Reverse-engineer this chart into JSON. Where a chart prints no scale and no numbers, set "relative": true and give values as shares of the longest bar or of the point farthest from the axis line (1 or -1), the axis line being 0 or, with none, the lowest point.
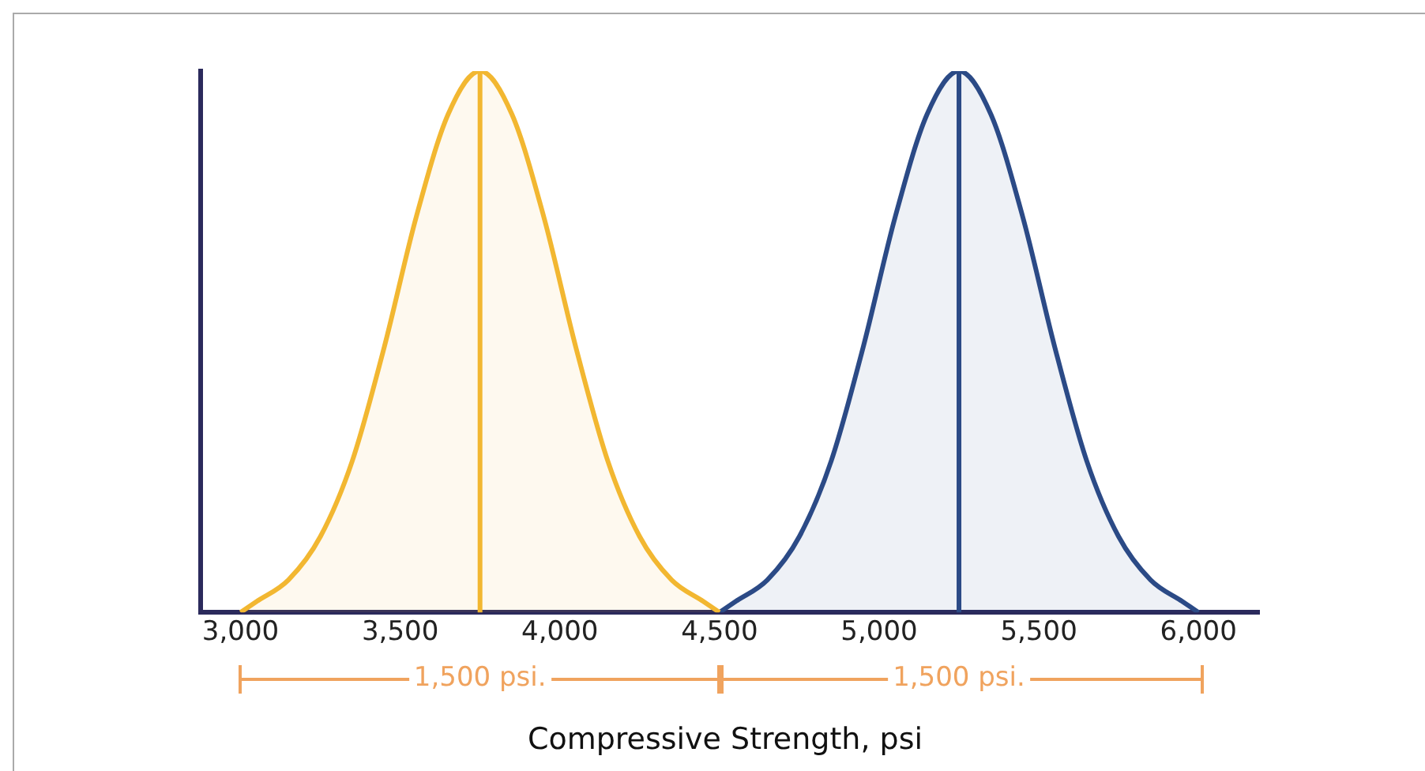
{
  "chart_data": {
    "type": "area",
    "relative": true,
    "xlabel": "Compressive Strength, psi",
    "series": [
      {
        "color": "#f2b731",
        "x": [
          3000,
          3050,
          3150,
          3250,
          3350,
          3450,
          3550,
          3650,
          3750,
          3850,
          3950,
          4050,
          4150,
          4250,
          4350,
          4450,
          4500
        ],
        "values": [
          0,
          0.02,
          0.06,
          0.14,
          0.28,
          0.49,
          0.73,
          0.92,
          1,
          0.92,
          0.73,
          0.49,
          0.28,
          0.14,
          0.06,
          0.02,
          0
        ]
      },
      {
        "color": "#2b4a86",
        "x": [
          4500,
          4550,
          4650,
          4750,
          4850,
          4950,
          5050,
          5150,
          5250,
          5350,
          5450,
          5550,
          5650,
          5750,
          5850,
          5950,
          6000
        ],
        "values": [
          0,
          0.02,
          0.06,
          0.14,
          0.28,
          0.49,
          0.73,
          0.92,
          1,
          0.92,
          0.73,
          0.49,
          0.28,
          0.14,
          0.06,
          0.02,
          0
        ]
      }
    ],
    "xlim": [
      2875,
      6190
    ],
    "xticks": [
      {
        "value": 3000,
        "label": "3,000"
      },
      {
        "value": 3500,
        "label": "3,500"
      },
      {
        "value": 4000,
        "label": "4,000"
      },
      {
        "value": 4500,
        "label": "4,500"
      },
      {
        "value": 5000,
        "label": "5,000"
      },
      {
        "value": 5500,
        "label": "5,500"
      },
      {
        "value": 6000,
        "label": "6,000"
      }
    ],
    "ref_lines": [
      {
        "axis": "x",
        "value": 3750,
        "color": "#f2b731"
      },
      {
        "axis": "x",
        "value": 5250,
        "color": "#2b4a86"
      }
    ],
    "annotations": [
      "1,500 psi.",
      "1,500 psi."
    ],
    "grid": false,
    "legend": false
  }
}
